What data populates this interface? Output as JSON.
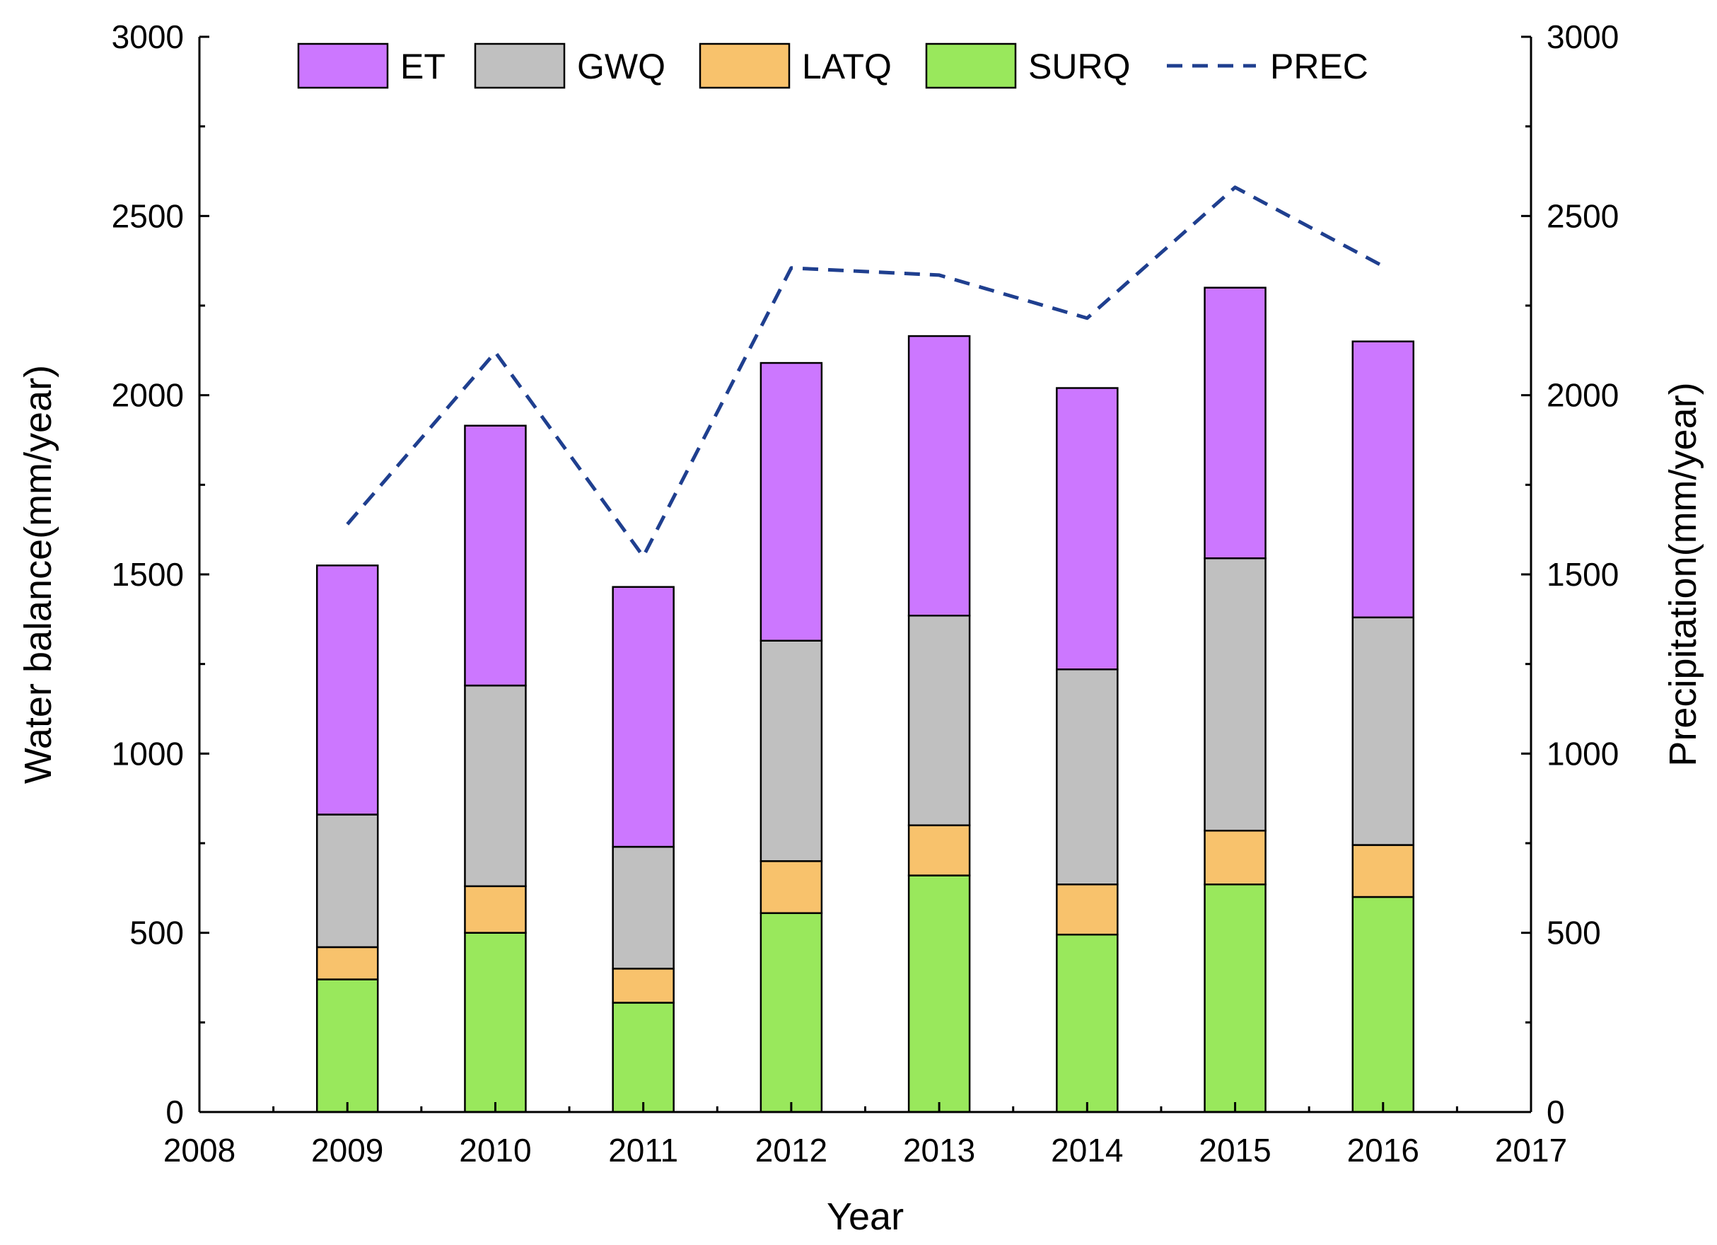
{
  "chart_data": {
    "type": "bar",
    "stacked": true,
    "categories": [
      "2009",
      "2010",
      "2011",
      "2012",
      "2013",
      "2014",
      "2015",
      "2016"
    ],
    "series": [
      {
        "name": "SURQ",
        "color": "#99e85c",
        "values": [
          370,
          500,
          305,
          555,
          660,
          495,
          635,
          600
        ]
      },
      {
        "name": "LATQ",
        "color": "#f8c26c",
        "values": [
          90,
          130,
          95,
          145,
          140,
          140,
          150,
          145
        ]
      },
      {
        "name": "GWQ",
        "color": "#c0c0c0",
        "values": [
          370,
          560,
          340,
          615,
          585,
          600,
          760,
          635
        ]
      },
      {
        "name": "ET",
        "color": "#cc77ff",
        "values": [
          695,
          725,
          725,
          775,
          780,
          785,
          755,
          770
        ]
      }
    ],
    "line_series": {
      "name": "PREC",
      "color": "#1f3f8f",
      "style": "dashed",
      "axis": "right",
      "values": [
        1640,
        2120,
        1550,
        2355,
        2335,
        2215,
        2580,
        2360
      ]
    },
    "legend_order": [
      "ET",
      "GWQ",
      "LATQ",
      "SURQ",
      "PREC"
    ],
    "legend_position": "top",
    "xlabel": "Year",
    "ylabel": "Water balance(mm/year)",
    "y2label": "Precipitation(mm/year)",
    "xticks": [
      "2008",
      "2009",
      "2010",
      "2011",
      "2012",
      "2013",
      "2014",
      "2015",
      "2016",
      "2017"
    ],
    "xlim": [
      2008,
      2017
    ],
    "ylim": [
      0,
      3000
    ],
    "y2lim": [
      0,
      3000
    ],
    "yticks": [
      0,
      500,
      1000,
      1500,
      2000,
      2500,
      3000
    ],
    "grid": false
  }
}
